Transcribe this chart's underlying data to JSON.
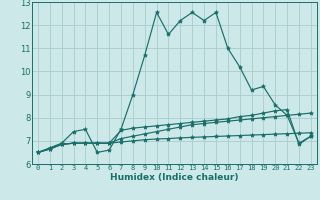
{
  "xlabel": "Humidex (Indice chaleur)",
  "bg_color": "#cce8e8",
  "grid_color": "#aacccc",
  "line_color": "#1a6e6a",
  "xlim": [
    -0.5,
    23.5
  ],
  "ylim": [
    6,
    13
  ],
  "yticks": [
    6,
    7,
    8,
    9,
    10,
    11,
    12,
    13
  ],
  "xticks": [
    0,
    1,
    2,
    3,
    4,
    5,
    6,
    7,
    8,
    9,
    10,
    11,
    12,
    13,
    14,
    15,
    16,
    17,
    18,
    19,
    20,
    21,
    22,
    23
  ],
  "series": [
    [
      6.5,
      6.7,
      6.9,
      7.4,
      7.5,
      6.5,
      6.6,
      7.5,
      9.0,
      10.7,
      12.55,
      11.6,
      12.2,
      12.55,
      12.2,
      12.55,
      11.0,
      10.2,
      9.2,
      9.35,
      8.55,
      8.1,
      6.9,
      7.2
    ],
    [
      6.5,
      6.65,
      6.85,
      6.9,
      6.9,
      6.9,
      6.9,
      7.45,
      7.55,
      7.6,
      7.65,
      7.7,
      7.75,
      7.8,
      7.85,
      7.9,
      7.95,
      8.05,
      8.1,
      8.2,
      8.3,
      8.35,
      6.85,
      7.2
    ],
    [
      6.5,
      6.65,
      6.85,
      6.9,
      6.9,
      6.9,
      6.9,
      7.1,
      7.2,
      7.3,
      7.4,
      7.5,
      7.6,
      7.7,
      7.75,
      7.8,
      7.85,
      7.9,
      7.95,
      8.0,
      8.05,
      8.1,
      8.15,
      8.2
    ],
    [
      6.5,
      6.65,
      6.85,
      6.9,
      6.9,
      6.9,
      6.9,
      6.95,
      7.0,
      7.05,
      7.08,
      7.1,
      7.13,
      7.15,
      7.17,
      7.19,
      7.21,
      7.23,
      7.25,
      7.27,
      7.29,
      7.31,
      7.33,
      7.35
    ]
  ]
}
